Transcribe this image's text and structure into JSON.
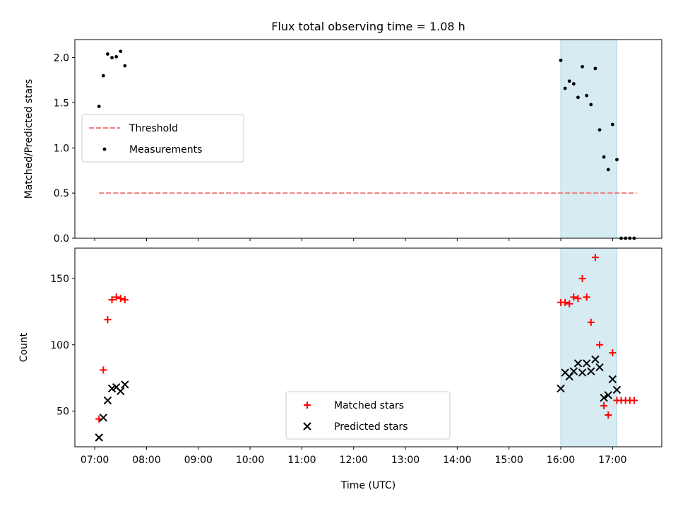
{
  "chart_data": [
    {
      "type": "scatter",
      "title": "Flux total observing time = 1.08 h",
      "xlabel": "",
      "ylabel": "Matched/Predicted stars",
      "xlim": [
        "06:37",
        "17:57"
      ],
      "ylim": [
        0,
        2.2
      ],
      "yticks": [
        "0.0",
        "0.5",
        "1.0",
        "1.5",
        "2.0"
      ],
      "highlight": {
        "x_start": "16:00",
        "x_end": "17:05",
        "color": "#add8e6"
      },
      "threshold": {
        "name": "Threshold",
        "y": 0.5,
        "x_start": "07:05",
        "x_end": "17:28",
        "color": "#f08080"
      },
      "series": [
        {
          "name": "Measurements",
          "color": "#000000",
          "marker": "dot",
          "points": [
            [
              "07:05",
              1.46
            ],
            [
              "07:10",
              1.8
            ],
            [
              "07:15",
              2.04
            ],
            [
              "07:20",
              2.0
            ],
            [
              "07:25",
              2.01
            ],
            [
              "07:30",
              2.07
            ],
            [
              "07:35",
              1.91
            ],
            [
              "16:00",
              1.97
            ],
            [
              "16:05",
              1.66
            ],
            [
              "16:10",
              1.74
            ],
            [
              "16:15",
              1.71
            ],
            [
              "16:20",
              1.56
            ],
            [
              "16:25",
              1.9
            ],
            [
              "16:30",
              1.58
            ],
            [
              "16:35",
              1.48
            ],
            [
              "16:40",
              1.88
            ],
            [
              "16:45",
              1.2
            ],
            [
              "16:50",
              0.9
            ],
            [
              "16:55",
              0.76
            ],
            [
              "17:00",
              1.26
            ],
            [
              "17:05",
              0.87
            ],
            [
              "17:10",
              0.0
            ],
            [
              "17:15",
              0.0
            ],
            [
              "17:20",
              0.0
            ],
            [
              "17:25",
              0.0
            ]
          ]
        }
      ],
      "legend": {
        "position": "center-left",
        "entries": [
          {
            "label": "Threshold",
            "kind": "dashed-line",
            "color": "#f08080"
          },
          {
            "label": "Measurements",
            "kind": "dot",
            "color": "#000000"
          }
        ]
      }
    },
    {
      "type": "scatter",
      "title": "",
      "xlabel": "Time (UTC)",
      "ylabel": "Count",
      "xlim": [
        "06:37",
        "17:57"
      ],
      "ylim": [
        23,
        173
      ],
      "yticks": [
        "50",
        "100",
        "150"
      ],
      "xticks": [
        "07:00",
        "08:00",
        "09:00",
        "10:00",
        "11:00",
        "12:00",
        "13:00",
        "14:00",
        "15:00",
        "16:00",
        "17:00"
      ],
      "highlight": {
        "x_start": "16:00",
        "x_end": "17:05",
        "color": "#add8e6"
      },
      "series": [
        {
          "name": "Matched stars",
          "color": "#ff0000",
          "marker": "plus",
          "points": [
            [
              "07:05",
              44
            ],
            [
              "07:10",
              81
            ],
            [
              "07:15",
              119
            ],
            [
              "07:20",
              134
            ],
            [
              "07:25",
              136
            ],
            [
              "07:30",
              135
            ],
            [
              "07:35",
              134
            ],
            [
              "16:00",
              132
            ],
            [
              "16:05",
              132
            ],
            [
              "16:10",
              131
            ],
            [
              "16:15",
              136
            ],
            [
              "16:20",
              135
            ],
            [
              "16:25",
              150
            ],
            [
              "16:30",
              136
            ],
            [
              "16:35",
              117
            ],
            [
              "16:40",
              166
            ],
            [
              "16:45",
              100
            ],
            [
              "16:50",
              54
            ],
            [
              "16:55",
              47
            ],
            [
              "17:00",
              94
            ],
            [
              "17:05",
              58
            ],
            [
              "17:10",
              58
            ],
            [
              "17:15",
              58
            ],
            [
              "17:20",
              58
            ],
            [
              "17:25",
              58
            ]
          ]
        },
        {
          "name": "Predicted stars",
          "color": "#000000",
          "marker": "x",
          "points": [
            [
              "07:05",
              30
            ],
            [
              "07:10",
              45
            ],
            [
              "07:15",
              58
            ],
            [
              "07:20",
              67
            ],
            [
              "07:25",
              68
            ],
            [
              "07:30",
              65
            ],
            [
              "07:35",
              70
            ],
            [
              "16:00",
              67
            ],
            [
              "16:05",
              79
            ],
            [
              "16:10",
              76
            ],
            [
              "16:15",
              80
            ],
            [
              "16:20",
              86
            ],
            [
              "16:25",
              79
            ],
            [
              "16:30",
              86
            ],
            [
              "16:35",
              80
            ],
            [
              "16:40",
              89
            ],
            [
              "16:45",
              83
            ],
            [
              "16:50",
              60
            ],
            [
              "16:55",
              62
            ],
            [
              "17:00",
              74
            ],
            [
              "17:05",
              66
            ]
          ]
        }
      ],
      "legend": {
        "position": "lower-center",
        "entries": [
          {
            "label": "Matched stars",
            "kind": "plus",
            "color": "#ff0000"
          },
          {
            "label": "Predicted stars",
            "kind": "x",
            "color": "#000000"
          }
        ]
      }
    }
  ]
}
